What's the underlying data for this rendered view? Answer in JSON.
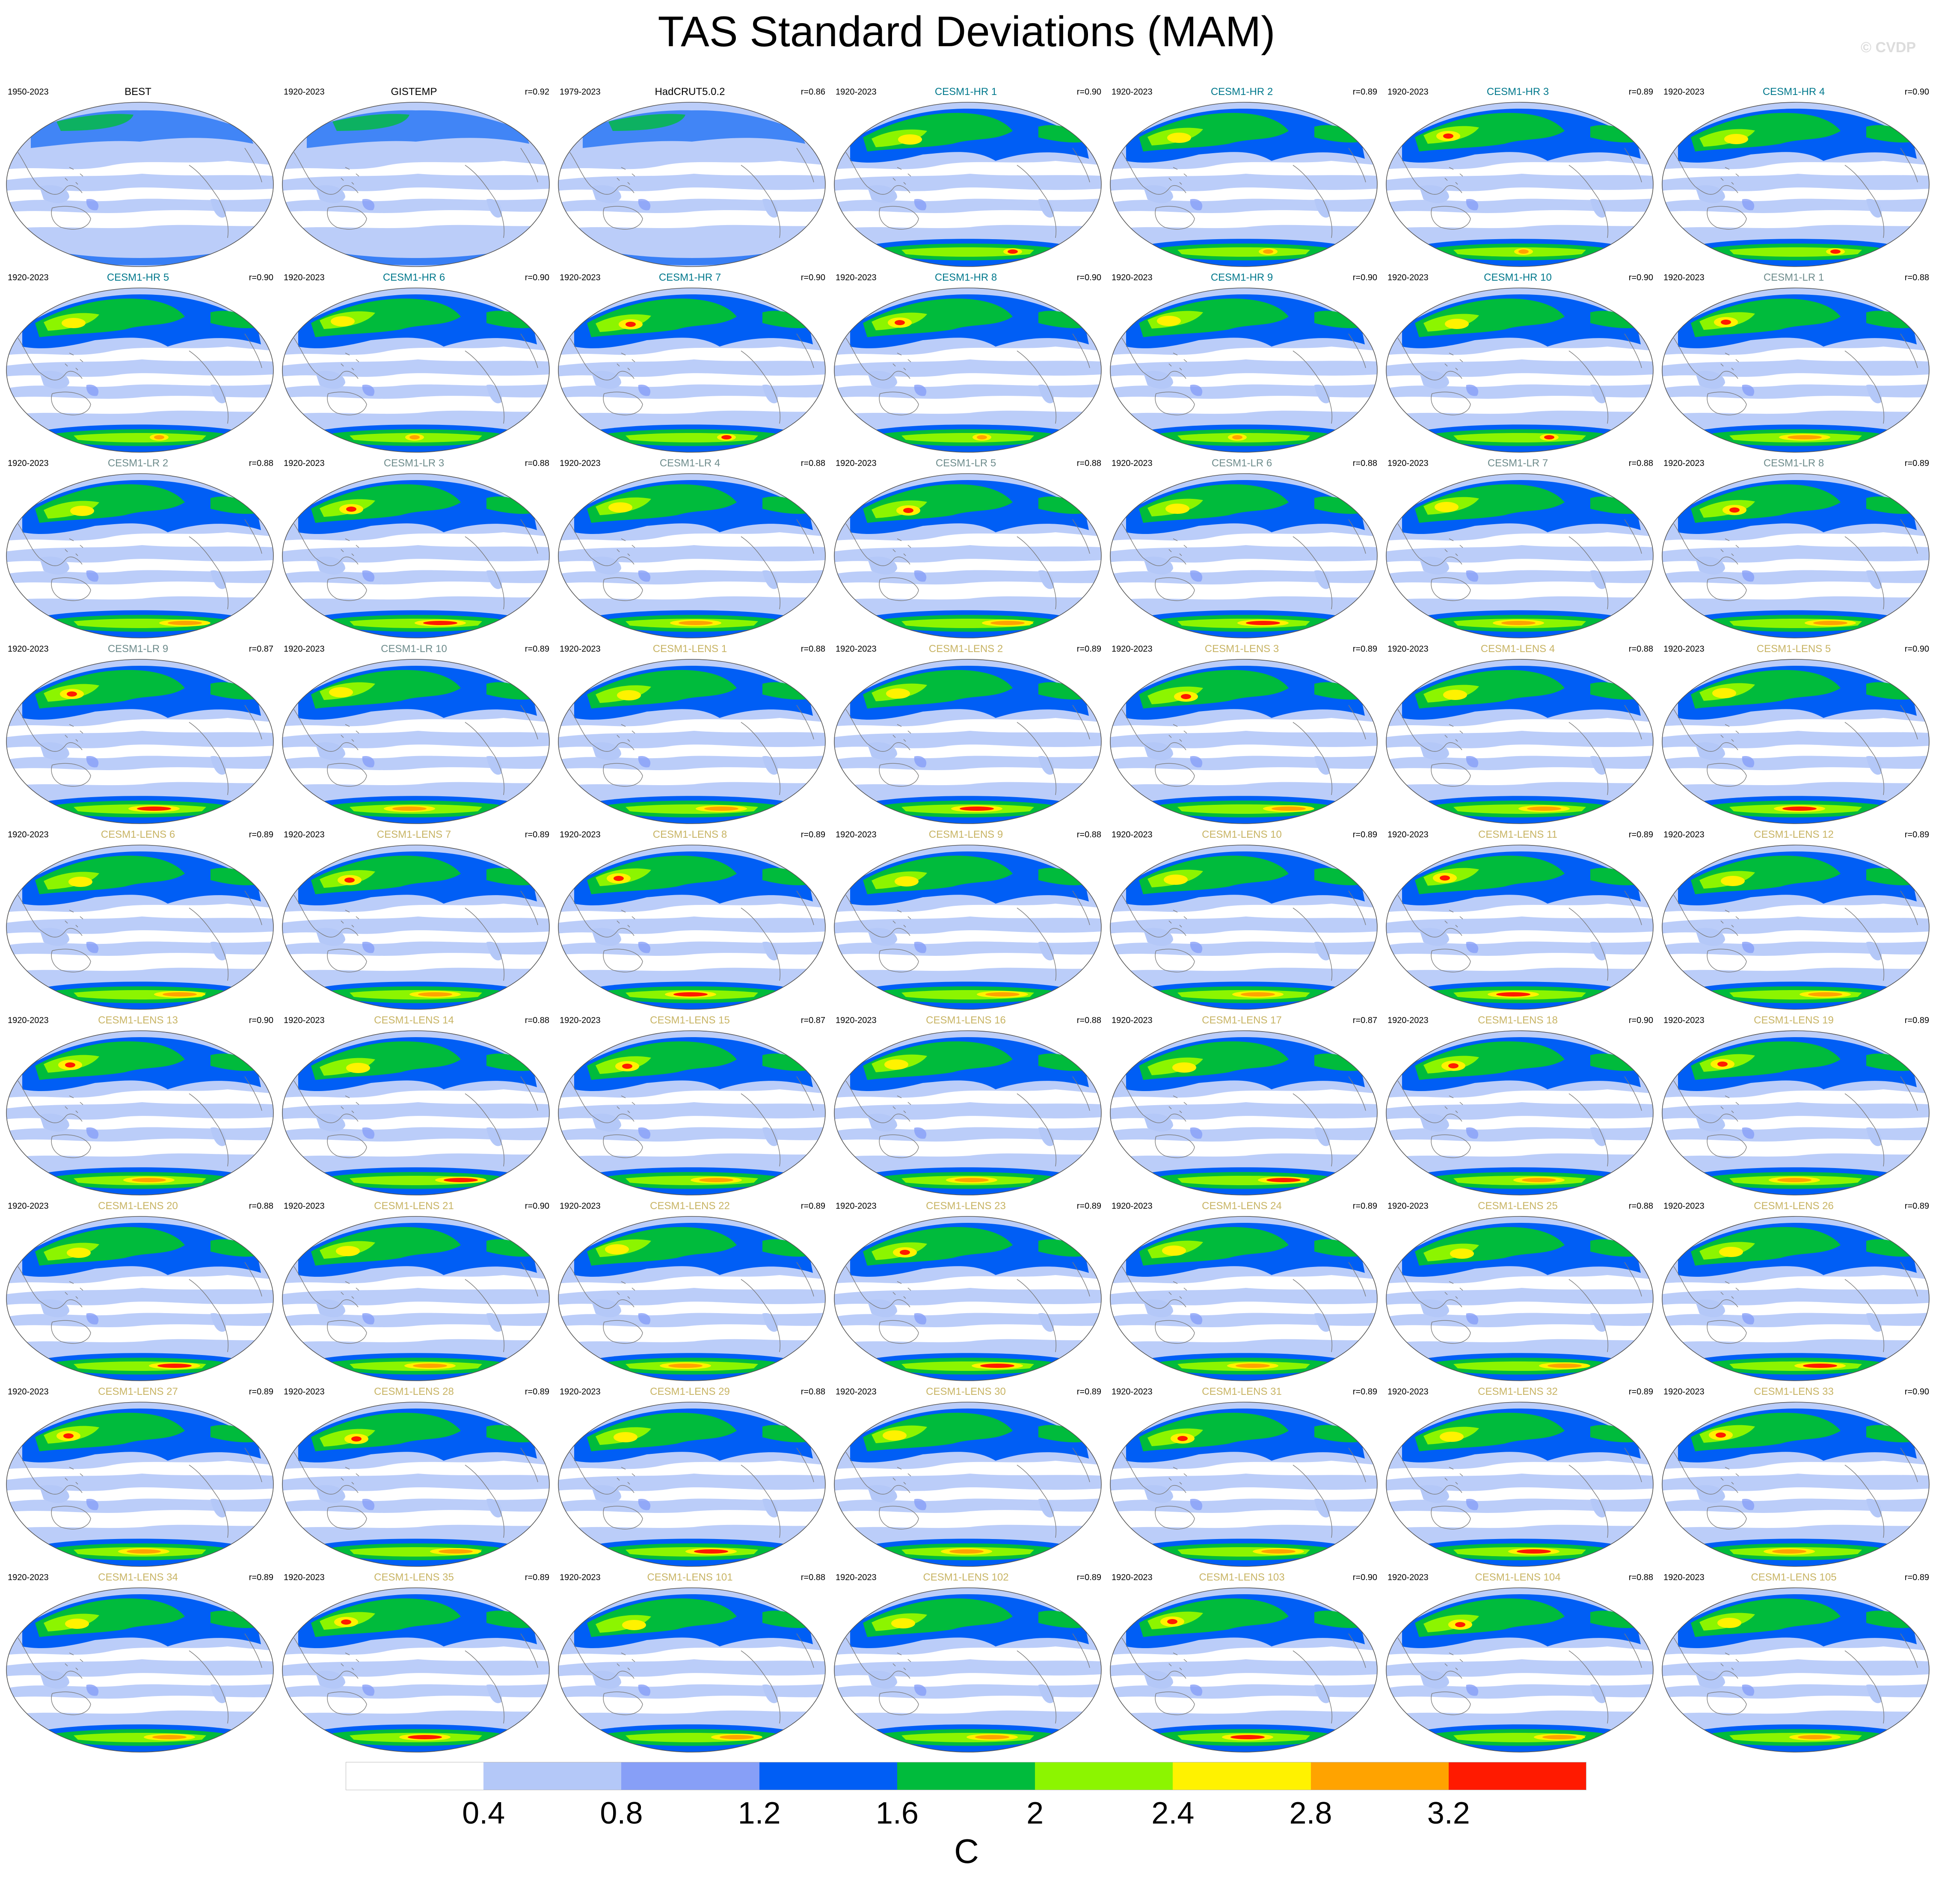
{
  "title": "TAS Standard Deviations (MAM)",
  "credit": "© CVDP",
  "colors": {
    "obs_title": "#000000",
    "hr_title": "#00788c",
    "lr_title": "#6e8c8c",
    "lens_title": "#c8b464",
    "ocean_lo": "#ffffff",
    "ocean_mid": "#b4c8f8",
    "land_outline": "#7a7a7a"
  },
  "colorbar": {
    "units": "C",
    "ticks": [
      "0.4",
      "0.8",
      "1.2",
      "1.6",
      "2",
      "2.4",
      "2.8",
      "3.2"
    ],
    "bins": [
      "#ffffff",
      "#b4c8f8",
      "#879ff7",
      "#005ef5",
      "#00bb3c",
      "#8cf500",
      "#fff200",
      "#ffa300",
      "#ff1a00"
    ]
  },
  "panels": [
    {
      "title": "BEST",
      "period": "1950-2023",
      "r": "",
      "group": "obs"
    },
    {
      "title": "GISTEMP",
      "period": "1920-2023",
      "r": "r=0.92",
      "group": "obs"
    },
    {
      "title": "HadCRUT5.0.2",
      "period": "1979-2023",
      "r": "r=0.86",
      "group": "obs"
    },
    {
      "title": "CESM1-HR 1",
      "period": "1920-2023",
      "r": "r=0.90",
      "group": "hr"
    },
    {
      "title": "CESM1-HR 2",
      "period": "1920-2023",
      "r": "r=0.89",
      "group": "hr"
    },
    {
      "title": "CESM1-HR 3",
      "period": "1920-2023",
      "r": "r=0.89",
      "group": "hr"
    },
    {
      "title": "CESM1-HR 4",
      "period": "1920-2023",
      "r": "r=0.90",
      "group": "hr"
    },
    {
      "title": "CESM1-HR 5",
      "period": "1920-2023",
      "r": "r=0.90",
      "group": "hr"
    },
    {
      "title": "CESM1-HR 6",
      "period": "1920-2023",
      "r": "r=0.90",
      "group": "hr"
    },
    {
      "title": "CESM1-HR 7",
      "period": "1920-2023",
      "r": "r=0.90",
      "group": "hr"
    },
    {
      "title": "CESM1-HR 8",
      "period": "1920-2023",
      "r": "r=0.90",
      "group": "hr"
    },
    {
      "title": "CESM1-HR 9",
      "period": "1920-2023",
      "r": "r=0.90",
      "group": "hr"
    },
    {
      "title": "CESM1-HR 10",
      "period": "1920-2023",
      "r": "r=0.90",
      "group": "hr"
    },
    {
      "title": "CESM1-LR 1",
      "period": "1920-2023",
      "r": "r=0.88",
      "group": "lr"
    },
    {
      "title": "CESM1-LR 2",
      "period": "1920-2023",
      "r": "r=0.88",
      "group": "lr"
    },
    {
      "title": "CESM1-LR 3",
      "period": "1920-2023",
      "r": "r=0.88",
      "group": "lr"
    },
    {
      "title": "CESM1-LR 4",
      "period": "1920-2023",
      "r": "r=0.88",
      "group": "lr"
    },
    {
      "title": "CESM1-LR 5",
      "period": "1920-2023",
      "r": "r=0.88",
      "group": "lr"
    },
    {
      "title": "CESM1-LR 6",
      "period": "1920-2023",
      "r": "r=0.88",
      "group": "lr"
    },
    {
      "title": "CESM1-LR 7",
      "period": "1920-2023",
      "r": "r=0.88",
      "group": "lr"
    },
    {
      "title": "CESM1-LR 8",
      "period": "1920-2023",
      "r": "r=0.89",
      "group": "lr"
    },
    {
      "title": "CESM1-LR 9",
      "period": "1920-2023",
      "r": "r=0.87",
      "group": "lr"
    },
    {
      "title": "CESM1-LR 10",
      "period": "1920-2023",
      "r": "r=0.89",
      "group": "lr"
    },
    {
      "title": "CESM1-LENS 1",
      "period": "1920-2023",
      "r": "r=0.88",
      "group": "lens"
    },
    {
      "title": "CESM1-LENS 2",
      "period": "1920-2023",
      "r": "r=0.89",
      "group": "lens"
    },
    {
      "title": "CESM1-LENS 3",
      "period": "1920-2023",
      "r": "r=0.89",
      "group": "lens"
    },
    {
      "title": "CESM1-LENS 4",
      "period": "1920-2023",
      "r": "r=0.88",
      "group": "lens"
    },
    {
      "title": "CESM1-LENS 5",
      "period": "1920-2023",
      "r": "r=0.90",
      "group": "lens"
    },
    {
      "title": "CESM1-LENS 6",
      "period": "1920-2023",
      "r": "r=0.89",
      "group": "lens"
    },
    {
      "title": "CESM1-LENS 7",
      "period": "1920-2023",
      "r": "r=0.89",
      "group": "lens"
    },
    {
      "title": "CESM1-LENS 8",
      "period": "1920-2023",
      "r": "r=0.89",
      "group": "lens"
    },
    {
      "title": "CESM1-LENS 9",
      "period": "1920-2023",
      "r": "r=0.88",
      "group": "lens"
    },
    {
      "title": "CESM1-LENS 10",
      "period": "1920-2023",
      "r": "r=0.89",
      "group": "lens"
    },
    {
      "title": "CESM1-LENS 11",
      "period": "1920-2023",
      "r": "r=0.89",
      "group": "lens"
    },
    {
      "title": "CESM1-LENS 12",
      "period": "1920-2023",
      "r": "r=0.89",
      "group": "lens"
    },
    {
      "title": "CESM1-LENS 13",
      "period": "1920-2023",
      "r": "r=0.90",
      "group": "lens"
    },
    {
      "title": "CESM1-LENS 14",
      "period": "1920-2023",
      "r": "r=0.88",
      "group": "lens"
    },
    {
      "title": "CESM1-LENS 15",
      "period": "1920-2023",
      "r": "r=0.87",
      "group": "lens"
    },
    {
      "title": "CESM1-LENS 16",
      "period": "1920-2023",
      "r": "r=0.88",
      "group": "lens"
    },
    {
      "title": "CESM1-LENS 17",
      "period": "1920-2023",
      "r": "r=0.87",
      "group": "lens"
    },
    {
      "title": "CESM1-LENS 18",
      "period": "1920-2023",
      "r": "r=0.90",
      "group": "lens"
    },
    {
      "title": "CESM1-LENS 19",
      "period": "1920-2023",
      "r": "r=0.89",
      "group": "lens"
    },
    {
      "title": "CESM1-LENS 20",
      "period": "1920-2023",
      "r": "r=0.88",
      "group": "lens"
    },
    {
      "title": "CESM1-LENS 21",
      "period": "1920-2023",
      "r": "r=0.90",
      "group": "lens"
    },
    {
      "title": "CESM1-LENS 22",
      "period": "1920-2023",
      "r": "r=0.89",
      "group": "lens"
    },
    {
      "title": "CESM1-LENS 23",
      "period": "1920-2023",
      "r": "r=0.89",
      "group": "lens"
    },
    {
      "title": "CESM1-LENS 24",
      "period": "1920-2023",
      "r": "r=0.89",
      "group": "lens"
    },
    {
      "title": "CESM1-LENS 25",
      "period": "1920-2023",
      "r": "r=0.88",
      "group": "lens"
    },
    {
      "title": "CESM1-LENS 26",
      "period": "1920-2023",
      "r": "r=0.89",
      "group": "lens"
    },
    {
      "title": "CESM1-LENS 27",
      "period": "1920-2023",
      "r": "r=0.89",
      "group": "lens"
    },
    {
      "title": "CESM1-LENS 28",
      "period": "1920-2023",
      "r": "r=0.89",
      "group": "lens"
    },
    {
      "title": "CESM1-LENS 29",
      "period": "1920-2023",
      "r": "r=0.88",
      "group": "lens"
    },
    {
      "title": "CESM1-LENS 30",
      "period": "1920-2023",
      "r": "r=0.89",
      "group": "lens"
    },
    {
      "title": "CESM1-LENS 31",
      "period": "1920-2023",
      "r": "r=0.89",
      "group": "lens"
    },
    {
      "title": "CESM1-LENS 32",
      "period": "1920-2023",
      "r": "r=0.89",
      "group": "lens"
    },
    {
      "title": "CESM1-LENS 33",
      "period": "1920-2023",
      "r": "r=0.90",
      "group": "lens"
    },
    {
      "title": "CESM1-LENS 34",
      "period": "1920-2023",
      "r": "r=0.89",
      "group": "lens"
    },
    {
      "title": "CESM1-LENS 35",
      "period": "1920-2023",
      "r": "r=0.89",
      "group": "lens"
    },
    {
      "title": "CESM1-LENS 101",
      "period": "1920-2023",
      "r": "r=0.88",
      "group": "lens"
    },
    {
      "title": "CESM1-LENS 102",
      "period": "1920-2023",
      "r": "r=0.89",
      "group": "lens"
    },
    {
      "title": "CESM1-LENS 103",
      "period": "1920-2023",
      "r": "r=0.90",
      "group": "lens"
    },
    {
      "title": "CESM1-LENS 104",
      "period": "1920-2023",
      "r": "r=0.88",
      "group": "lens"
    },
    {
      "title": "CESM1-LENS 105",
      "period": "1920-2023",
      "r": "r=0.89",
      "group": "lens"
    }
  ]
}
